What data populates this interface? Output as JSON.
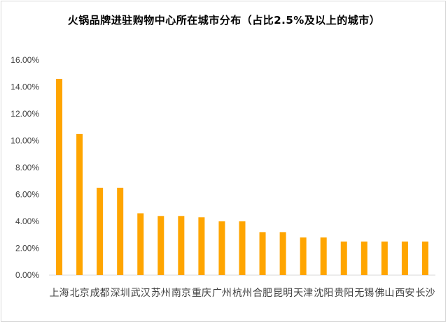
{
  "chart_data": {
    "type": "bar",
    "title": "火锅品牌进驻购物中心所在城市分布（占比2.5%及以上的城市）",
    "categories": [
      "上海",
      "北京",
      "成都",
      "深圳",
      "武汉",
      "苏州",
      "南京",
      "重庆",
      "广州",
      "杭州",
      "合肥",
      "昆明",
      "天津",
      "沈阳",
      "贵阳",
      "无锡",
      "佛山",
      "西安",
      "长沙"
    ],
    "values": [
      14.6,
      10.5,
      6.5,
      6.5,
      4.6,
      4.4,
      4.4,
      4.3,
      4.0,
      4.0,
      3.2,
      3.2,
      2.8,
      2.8,
      2.5,
      2.5,
      2.5,
      2.5,
      2.5
    ],
    "ylim": [
      0,
      16
    ],
    "yticks": [
      "0.00%",
      "2.00%",
      "4.00%",
      "6.00%",
      "8.00%",
      "10.00%",
      "12.00%",
      "14.00%",
      "16.00%"
    ],
    "xlabel": "",
    "ylabel": "",
    "bar_color": "#FFA500",
    "grid": false,
    "legend": "none"
  }
}
